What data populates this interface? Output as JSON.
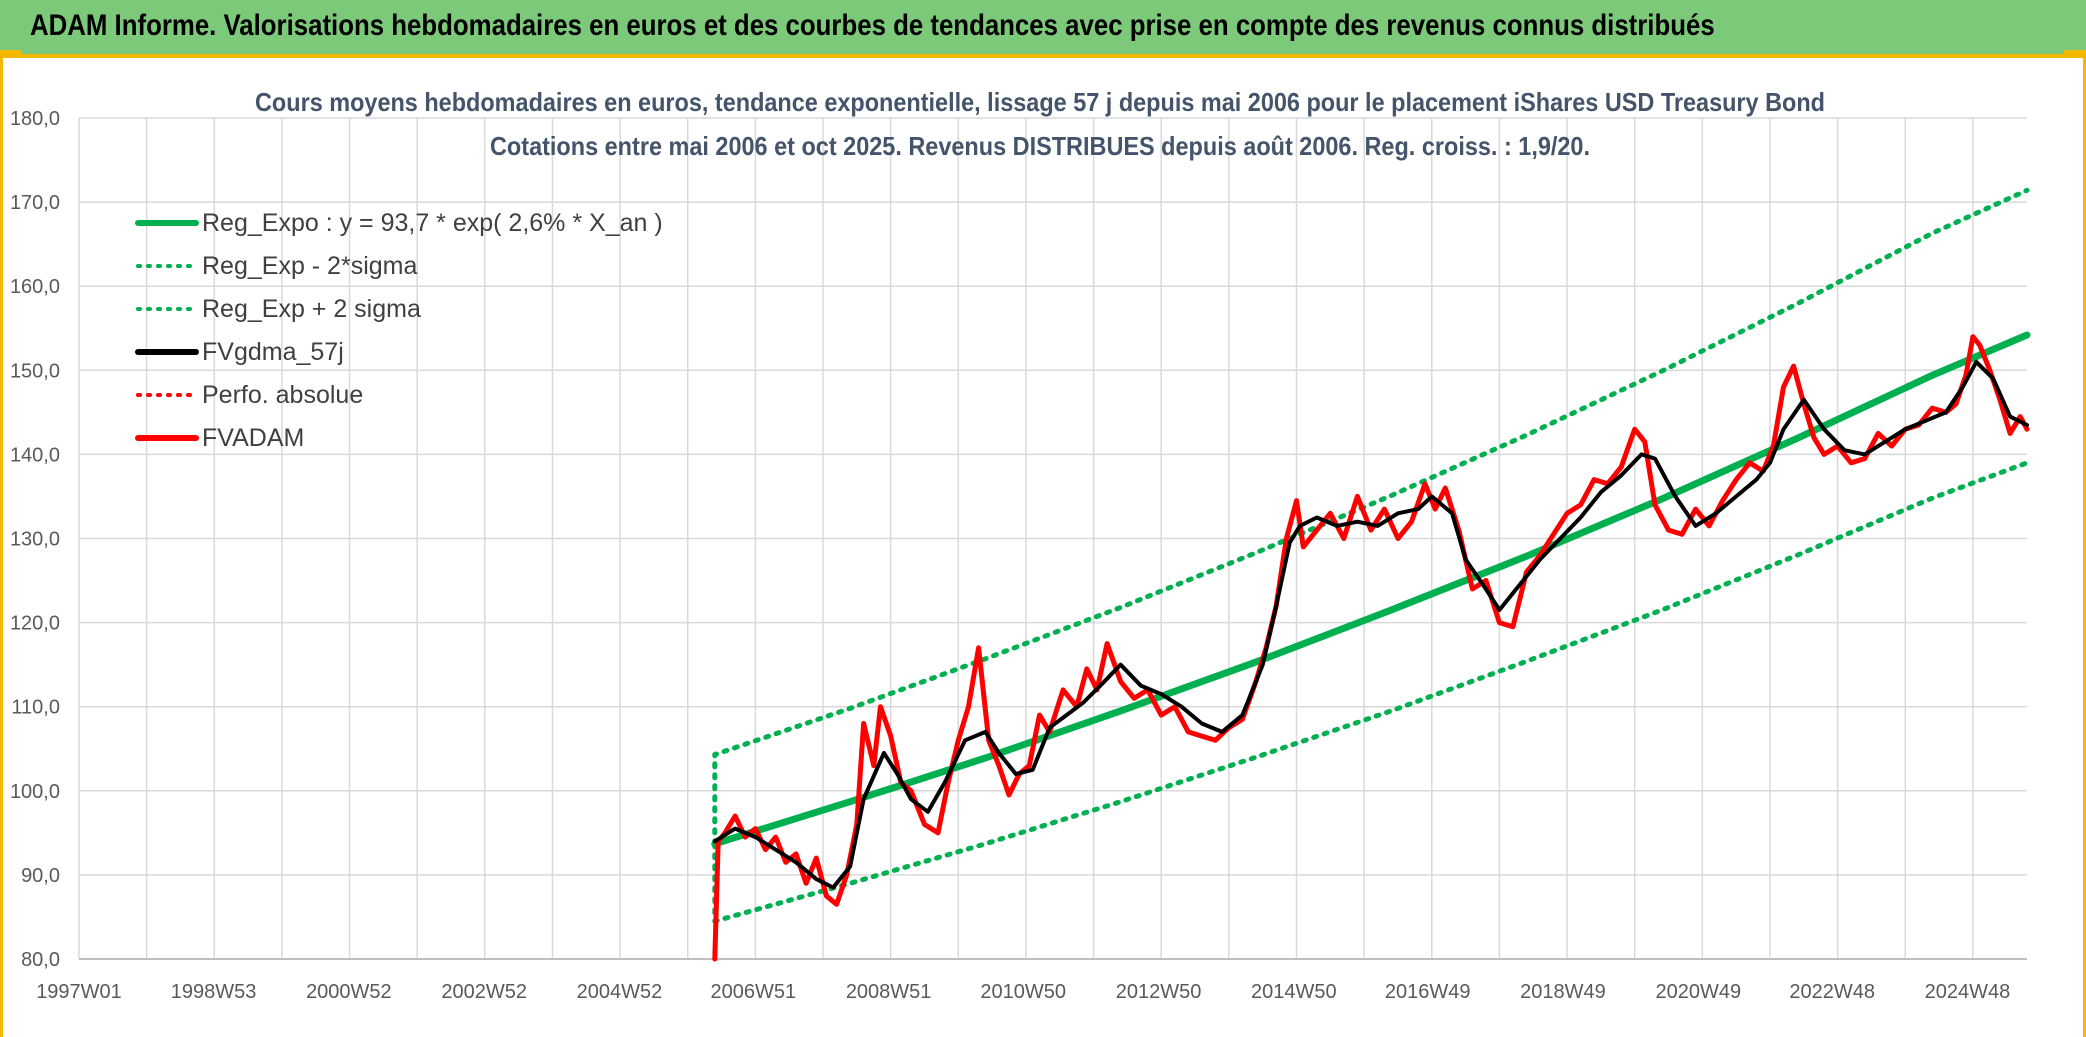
{
  "header": {
    "title": "ADAM Informe. Valorisations hebdomadaires en euros et des courbes de tendances avec prise en compte des revenus connus distribués"
  },
  "colors": {
    "banner": "#7dc97a",
    "accent": "#f5b800",
    "regression": "#00b050",
    "smoothed": "#000000",
    "price": "#ff0000"
  },
  "chart_data": {
    "type": "line",
    "title": "Cours moyens hebdomadaires en euros, tendance exponentielle, lissage 57 j depuis mai 2006 pour le placement iShares USD Treasury Bond",
    "subtitle": "Cotations entre mai 2006 et oct 2025. Revenus DISTRIBUES depuis août 2006. Reg. croiss. : 1,9/20.",
    "xlabel": "",
    "ylabel": "",
    "xlim": [
      1997.0,
      2025.8
    ],
    "ylim": [
      80,
      180
    ],
    "grid": true,
    "legend_position": "top-left",
    "y_ticks": [
      "80,0",
      "90,0",
      "100,0",
      "110,0",
      "120,0",
      "130,0",
      "140,0",
      "150,0",
      "160,0",
      "170,0",
      "180,0"
    ],
    "x_ticks": [
      {
        "label": "1997W01",
        "t": 1997.0
      },
      {
        "label": "1998W53",
        "t": 1998.99
      },
      {
        "label": "2000W52",
        "t": 2000.99
      },
      {
        "label": "2002W52",
        "t": 2002.99
      },
      {
        "label": "2004W52",
        "t": 2004.99
      },
      {
        "label": "2006W51",
        "t": 2006.97
      },
      {
        "label": "2008W51",
        "t": 2008.97
      },
      {
        "label": "2010W50",
        "t": 2010.96
      },
      {
        "label": "2012W50",
        "t": 2012.96
      },
      {
        "label": "2014W50",
        "t": 2014.96
      },
      {
        "label": "2016W49",
        "t": 2016.94
      },
      {
        "label": "2018W49",
        "t": 2018.94
      },
      {
        "label": "2020W49",
        "t": 2020.94
      },
      {
        "label": "2022W48",
        "t": 2022.92
      },
      {
        "label": "2024W48",
        "t": 2024.92
      }
    ],
    "legend": [
      {
        "label": "Reg_Expo : y = 93,7 * exp( 2,6% *  X_an )",
        "color": "#00b050",
        "style": "solid"
      },
      {
        "label": "Reg_Exp - 2*sigma",
        "color": "#00b050",
        "style": "dotted"
      },
      {
        "label": "Reg_Exp + 2 sigma",
        "color": "#00b050",
        "style": "dotted"
      },
      {
        "label": "FVgdma_57j",
        "color": "#000000",
        "style": "solid"
      },
      {
        "label": "Perfo. absolue",
        "color": "#ff0000",
        "style": "dotted"
      },
      {
        "label": "FVADAM",
        "color": "#ff0000",
        "style": "solid"
      }
    ],
    "series": [
      {
        "name": "Reg_Expo : y = 93,7 * exp( 2,6% *  X_an )",
        "x": [
          2006.4,
          2008.4,
          2010.4,
          2012.4,
          2014.4,
          2016.4,
          2018.4,
          2020.4,
          2022.4,
          2024.4,
          2025.8
        ],
        "values": [
          93.7,
          98.7,
          103.9,
          109.5,
          115.3,
          121.5,
          127.9,
          134.7,
          141.9,
          149.4,
          154.2
        ]
      },
      {
        "name": "Reg_Exp - 2*sigma",
        "x": [
          2006.4,
          2008.4,
          2010.4,
          2012.4,
          2014.4,
          2016.4,
          2018.4,
          2020.4,
          2022.4,
          2024.4,
          2025.8
        ],
        "values": [
          84.5,
          89.0,
          93.7,
          98.7,
          104.0,
          109.5,
          115.4,
          121.5,
          128.0,
          134.8,
          139.0
        ]
      },
      {
        "name": "Reg_Exp + 2 sigma",
        "x": [
          2006.4,
          2008.4,
          2010.4,
          2012.4,
          2014.4,
          2016.4,
          2018.4,
          2020.4,
          2022.4,
          2024.4,
          2025.8
        ],
        "values": [
          104.3,
          109.8,
          115.7,
          121.8,
          128.3,
          135.1,
          142.3,
          149.9,
          157.9,
          166.3,
          171.4
        ]
      },
      {
        "name": "FVgdma_57j",
        "x": [
          2006.4,
          2006.7,
          2007.0,
          2007.3,
          2007.6,
          2007.9,
          2008.15,
          2008.4,
          2008.6,
          2008.9,
          2009.1,
          2009.3,
          2009.55,
          2009.8,
          2010.1,
          2010.4,
          2010.6,
          2010.85,
          2011.1,
          2011.35,
          2011.6,
          2011.85,
          2012.1,
          2012.4,
          2012.7,
          2013.0,
          2013.3,
          2013.6,
          2013.9,
          2014.2,
          2014.5,
          2014.7,
          2014.9,
          2015.05,
          2015.3,
          2015.6,
          2015.9,
          2016.2,
          2016.5,
          2016.8,
          2017.0,
          2017.3,
          2017.5,
          2017.8,
          2018.0,
          2018.3,
          2018.6,
          2018.9,
          2019.2,
          2019.5,
          2019.8,
          2020.1,
          2020.3,
          2020.6,
          2020.9,
          2021.2,
          2021.5,
          2021.8,
          2022.0,
          2022.2,
          2022.5,
          2022.8,
          2023.1,
          2023.4,
          2023.7,
          2024.0,
          2024.3,
          2024.6,
          2024.85,
          2025.05,
          2025.3,
          2025.55,
          2025.8
        ],
        "values": [
          94.0,
          95.5,
          94.5,
          93.0,
          91.5,
          89.5,
          88.5,
          91.0,
          99.0,
          104.5,
          102.0,
          99.0,
          97.5,
          101.0,
          106.0,
          107.0,
          104.5,
          102.0,
          102.5,
          107.5,
          109.0,
          110.5,
          112.5,
          115.0,
          112.5,
          111.5,
          110.0,
          108.0,
          107.0,
          109.0,
          115.0,
          122.0,
          129.5,
          131.5,
          132.5,
          131.5,
          132.0,
          131.5,
          133.0,
          133.5,
          135.0,
          133.0,
          127.5,
          124.0,
          121.5,
          124.5,
          127.5,
          130.0,
          132.5,
          135.5,
          137.5,
          140.0,
          139.5,
          135.0,
          131.5,
          133.0,
          135.0,
          137.0,
          139.0,
          143.0,
          146.5,
          143.0,
          140.5,
          140.0,
          141.5,
          143.0,
          144.0,
          145.0,
          148.0,
          151.0,
          149.0,
          144.5,
          143.5
        ]
      },
      {
        "name": "FVADAM",
        "x": [
          2006.4,
          2006.45,
          2006.55,
          2006.7,
          2006.85,
          2007.0,
          2007.15,
          2007.3,
          2007.45,
          2007.6,
          2007.75,
          2007.9,
          2008.05,
          2008.2,
          2008.35,
          2008.5,
          2008.6,
          2008.75,
          2008.85,
          2009.0,
          2009.15,
          2009.3,
          2009.5,
          2009.7,
          2009.85,
          2010.0,
          2010.15,
          2010.3,
          2010.45,
          2010.6,
          2010.75,
          2010.9,
          2011.05,
          2011.2,
          2011.35,
          2011.55,
          2011.75,
          2011.9,
          2012.05,
          2012.2,
          2012.4,
          2012.6,
          2012.8,
          2013.0,
          2013.2,
          2013.4,
          2013.6,
          2013.8,
          2014.0,
          2014.2,
          2014.4,
          2014.55,
          2014.7,
          2014.85,
          2015.0,
          2015.1,
          2015.3,
          2015.5,
          2015.7,
          2015.9,
          2016.1,
          2016.3,
          2016.5,
          2016.7,
          2016.9,
          2017.05,
          2017.2,
          2017.4,
          2017.6,
          2017.8,
          2018.0,
          2018.2,
          2018.4,
          2018.6,
          2018.8,
          2019.0,
          2019.2,
          2019.4,
          2019.6,
          2019.8,
          2020.0,
          2020.15,
          2020.3,
          2020.5,
          2020.7,
          2020.9,
          2021.1,
          2021.3,
          2021.5,
          2021.7,
          2021.9,
          2022.05,
          2022.2,
          2022.35,
          2022.5,
          2022.65,
          2022.8,
          2023.0,
          2023.2,
          2023.4,
          2023.6,
          2023.8,
          2024.0,
          2024.2,
          2024.4,
          2024.6,
          2024.75,
          2024.9,
          2025.0,
          2025.1,
          2025.25,
          2025.4,
          2025.55,
          2025.7,
          2025.8
        ],
        "values": [
          80.0,
          94.0,
          95.0,
          97.0,
          94.5,
          95.5,
          93.0,
          94.5,
          91.5,
          92.5,
          89.0,
          92.0,
          87.5,
          86.5,
          90.0,
          96.0,
          108.0,
          103.0,
          110.0,
          106.5,
          101.0,
          100.0,
          96.0,
          95.0,
          101.0,
          106.0,
          110.0,
          117.0,
          106.0,
          103.0,
          99.5,
          102.0,
          103.0,
          109.0,
          107.0,
          112.0,
          110.0,
          114.5,
          112.0,
          117.5,
          113.0,
          111.0,
          112.0,
          109.0,
          110.0,
          107.0,
          106.5,
          106.0,
          107.5,
          108.5,
          113.0,
          117.0,
          122.0,
          130.0,
          134.5,
          129.0,
          131.0,
          133.0,
          130.0,
          135.0,
          131.0,
          133.5,
          130.0,
          132.0,
          136.5,
          133.5,
          136.0,
          131.0,
          124.0,
          125.0,
          120.0,
          119.5,
          126.0,
          128.0,
          130.5,
          133.0,
          134.0,
          137.0,
          136.5,
          138.5,
          143.0,
          141.5,
          134.0,
          131.0,
          130.5,
          133.5,
          131.5,
          134.5,
          137.0,
          139.0,
          138.0,
          141.0,
          148.0,
          150.5,
          146.0,
          142.0,
          140.0,
          141.0,
          139.0,
          139.5,
          142.5,
          141.0,
          143.0,
          143.5,
          145.5,
          145.0,
          146.0,
          149.5,
          154.0,
          153.0,
          150.0,
          146.5,
          142.5,
          144.5,
          143.0
        ]
      }
    ]
  }
}
